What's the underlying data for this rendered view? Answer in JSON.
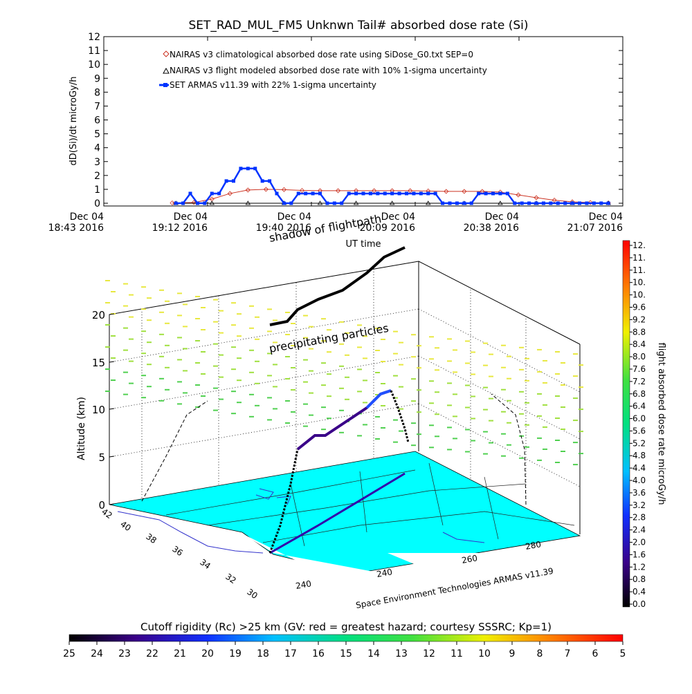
{
  "chart_data": [
    {
      "type": "line",
      "title": "SET_RAD_MUL_FM5 Unknwn Tail#  absorbed dose rate (Si)",
      "ylabel": "dD(Si)/dt microGy/h",
      "xlabel": "UT time",
      "ylim": [
        0,
        12
      ],
      "y_ticks": [
        "0",
        "1",
        "2",
        "3",
        "4",
        "5",
        "6",
        "7",
        "8",
        "9",
        "10",
        "11",
        "12"
      ],
      "x_ticks": [
        {
          "line1": "Dec 04",
          "line2": "18:43 2016"
        },
        {
          "line1": "Dec 04",
          "line2": "19:12 2016"
        },
        {
          "line1": "Dec 04",
          "line2": "19:40 2016"
        },
        {
          "line1": "Dec 04",
          "line2": "20:09 2016"
        },
        {
          "line1": "Dec 04",
          "line2": "20:38 2016"
        },
        {
          "line1": "Dec 04",
          "line2": "21:07 2016"
        }
      ],
      "xlim_minutes": [
        0,
        144
      ],
      "legend_placement": "top-left",
      "series": [
        {
          "name": "NAIRAS v3 climatological absorbed dose rate using SiDose_G0.txt SEP=0",
          "color": "#cc3322",
          "marker": "diamond",
          "x": [
            19,
            25,
            30,
            35,
            40,
            45,
            50,
            55,
            60,
            65,
            70,
            75,
            80,
            85,
            90,
            95,
            100,
            105,
            110,
            115,
            120,
            125,
            130,
            135,
            140
          ],
          "values": [
            0.02,
            0.05,
            0.3,
            0.7,
            0.95,
            1.0,
            0.98,
            0.92,
            0.9,
            0.9,
            0.9,
            0.9,
            0.9,
            0.9,
            0.88,
            0.85,
            0.85,
            0.85,
            0.8,
            0.6,
            0.4,
            0.22,
            0.1,
            0.05,
            0.02
          ]
        },
        {
          "name": "NAIRAS v3 flight modeled absorbed dose rate with 10% 1-sigma uncertainty",
          "color": "#000000",
          "marker": "triangle",
          "x": [
            20,
            30,
            40,
            50,
            60,
            70,
            80,
            90,
            100,
            110,
            120,
            130,
            140
          ],
          "values": [
            0,
            0,
            0,
            0,
            0,
            0,
            0,
            0,
            0,
            0,
            0,
            0,
            0
          ]
        },
        {
          "name": "SET ARMAS v11.39 with 22% 1-sigma uncertainty",
          "color": "#0033ff",
          "marker": "square",
          "x": [
            20,
            22,
            24,
            26,
            28,
            30,
            32,
            34,
            36,
            38,
            40,
            42,
            44,
            46,
            48,
            50,
            52,
            54,
            56,
            58,
            60,
            62,
            64,
            66,
            68,
            70,
            72,
            74,
            76,
            78,
            80,
            82,
            84,
            86,
            88,
            90,
            92,
            94,
            96,
            98,
            100,
            102,
            104,
            106,
            108,
            110,
            112,
            114,
            116,
            118,
            120,
            122,
            124,
            126,
            128,
            130,
            132,
            134,
            136,
            138,
            140
          ],
          "values": [
            0,
            0,
            0.7,
            0,
            0,
            0.7,
            0.7,
            1.6,
            1.6,
            2.5,
            2.5,
            2.5,
            1.6,
            1.6,
            0.7,
            0,
            0,
            0.7,
            0.7,
            0.7,
            0.7,
            0,
            0,
            0,
            0.7,
            0.7,
            0.7,
            0.7,
            0.7,
            0.7,
            0.7,
            0.7,
            0.7,
            0.7,
            0.7,
            0.7,
            0.7,
            0,
            0,
            0,
            0,
            0,
            0.7,
            0.7,
            0.7,
            0.7,
            0.7,
            0,
            0,
            0,
            0,
            0,
            0,
            0,
            0,
            0,
            0,
            0,
            0,
            0,
            0
          ]
        }
      ]
    },
    {
      "type": "scatter",
      "subtype": "3d-map",
      "zlabel": "Altitude (km)",
      "z_ticks": [
        "0",
        "5",
        "10",
        "15",
        "20"
      ],
      "lat_ticks": [
        "42",
        "40",
        "38",
        "36",
        "34",
        "32",
        "30"
      ],
      "lon_ticks": [
        "240",
        "240",
        "260",
        "280"
      ],
      "annotations": [
        "shadow of flightpath",
        "precipitating particles"
      ],
      "credit": "Space Environment Technologies ARMAS v11.39",
      "colors": {
        "surface": "#00ffff",
        "coast": "#3333cc",
        "flightpath": "#000000"
      }
    },
    {
      "type": "heatmap",
      "subtype": "colorbar",
      "orientation": "vertical",
      "label": "flight absorbed dose rate microGy/h",
      "range": [
        0,
        12
      ],
      "tick_labels": [
        "12.",
        "11.",
        "11.",
        "10.",
        "10.",
        "9.6",
        "9.2",
        "8.8",
        "8.4",
        "8.0",
        "7.6",
        "7.2",
        "6.8",
        "6.4",
        "6.0",
        "5.6",
        "5.2",
        "4.8",
        "4.4",
        "4.0",
        "3.6",
        "3.2",
        "2.8",
        "2.4",
        "2.0",
        "1.6",
        "1.2",
        "0.8",
        "0.4",
        "0.0"
      ]
    },
    {
      "type": "heatmap",
      "subtype": "colorbar",
      "orientation": "horizontal",
      "label": "Cutoff rigidity (Rc) >25 km (GV: red = greatest hazard; courtesy SSSRC; Kp=1)",
      "range": [
        25,
        5
      ],
      "tick_labels": [
        "25",
        "24",
        "23",
        "22",
        "21",
        "20",
        "19",
        "18",
        "17",
        "16",
        "15",
        "14",
        "13",
        "12",
        "11",
        "10",
        "9",
        "8",
        "7",
        "6",
        "5"
      ]
    }
  ]
}
